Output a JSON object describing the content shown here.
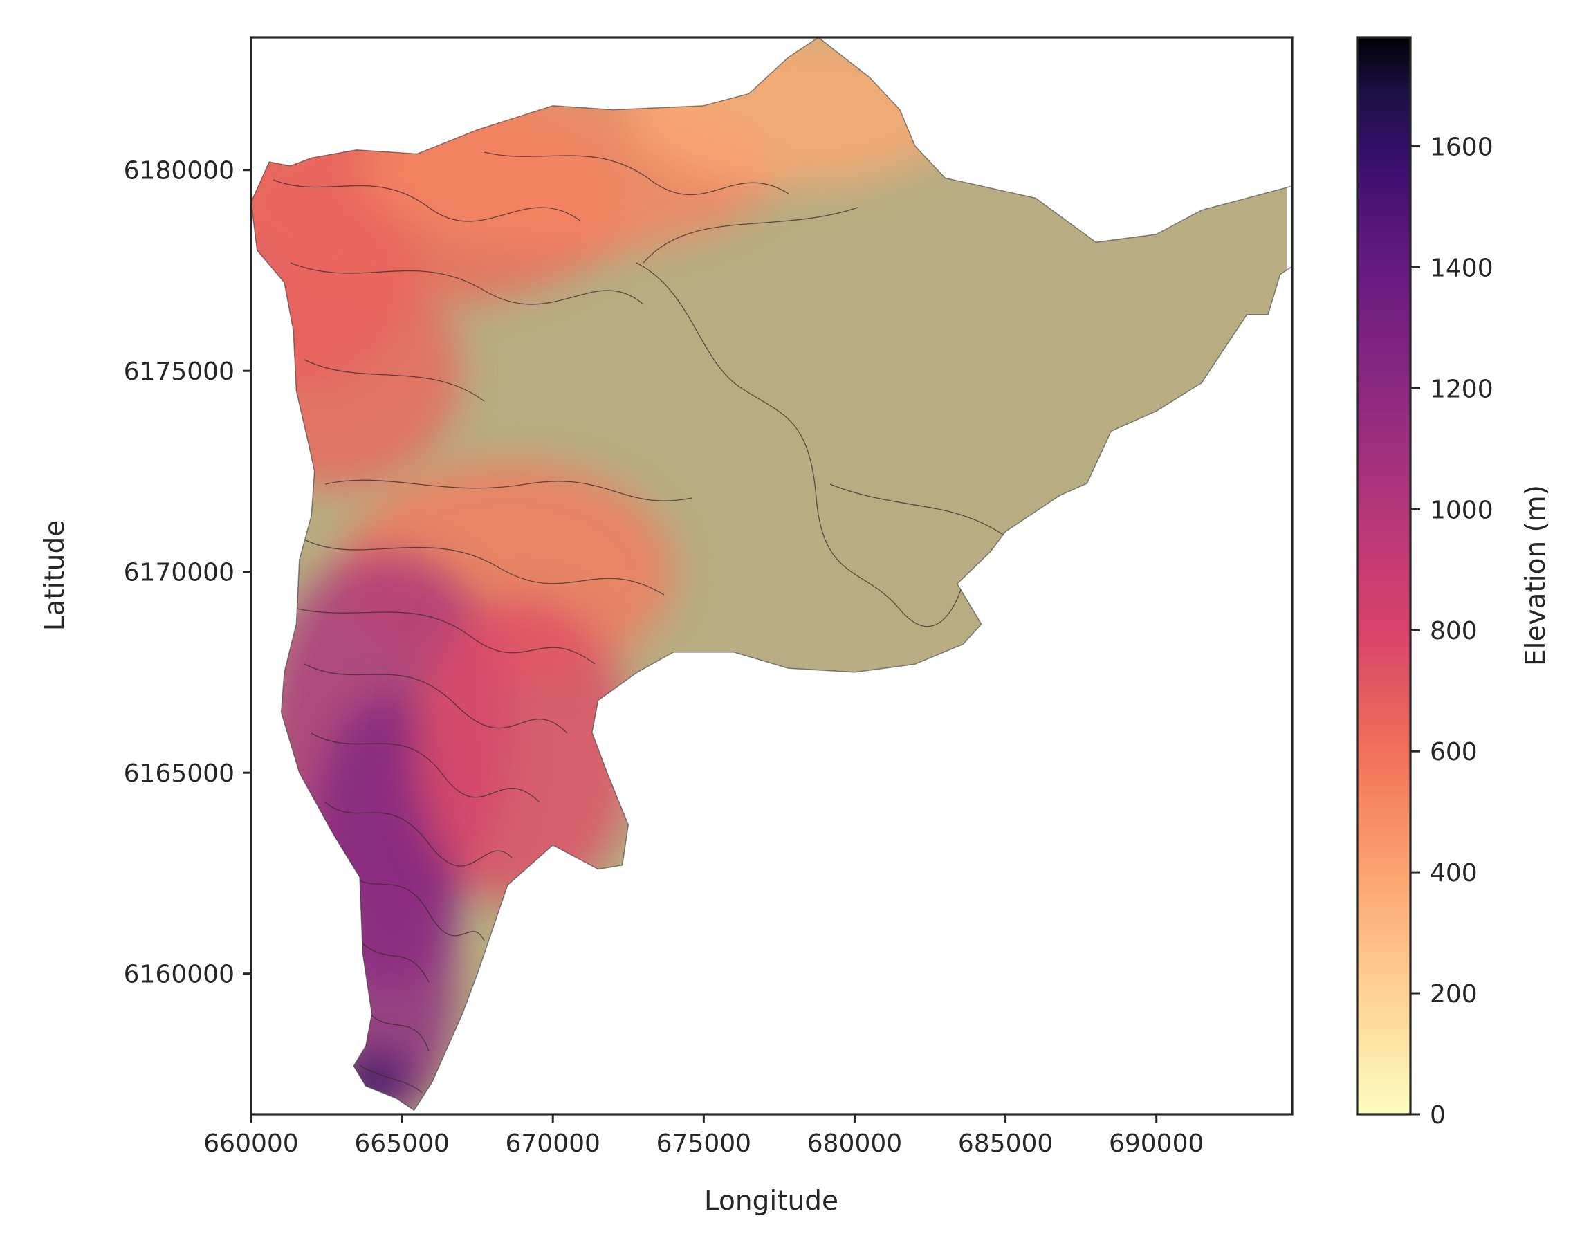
{
  "chart_data": {
    "type": "heatmap",
    "title": "",
    "xlabel": "Longitude",
    "ylabel": "Latitude",
    "xlim": [
      660000,
      694500
    ],
    "ylim": [
      6156500,
      6183300
    ],
    "x_ticks": [
      660000,
      665000,
      670000,
      675000,
      680000,
      685000,
      690000
    ],
    "y_ticks": [
      6160000,
      6165000,
      6170000,
      6175000,
      6180000
    ],
    "x_tick_labels": [
      "660000",
      "665000",
      "670000",
      "675000",
      "680000",
      "685000",
      "690000"
    ],
    "y_tick_labels": [
      "6160000",
      "6165000",
      "6170000",
      "6175000",
      "6180000"
    ],
    "grid": false,
    "colorbar": {
      "label": "Elevation (m)",
      "colormap": "magma_r",
      "range": [
        0,
        1780
      ],
      "ticks": [
        0,
        200,
        400,
        600,
        800,
        1000,
        1200,
        1400,
        1600
      ],
      "tick_labels": [
        "0",
        "200",
        "400",
        "600",
        "800",
        "1000",
        "1200",
        "1400",
        "1600"
      ]
    },
    "contour_interval_m": 100,
    "catchment_outline": [
      [
        660000,
        6179200
      ],
      [
        660600,
        6180200
      ],
      [
        661300,
        6180100
      ],
      [
        662000,
        6180300
      ],
      [
        663500,
        6180500
      ],
      [
        665500,
        6180400
      ],
      [
        667500,
        6181000
      ],
      [
        670000,
        6181600
      ],
      [
        672000,
        6181500
      ],
      [
        675000,
        6181600
      ],
      [
        676500,
        6181900
      ],
      [
        677800,
        6182800
      ],
      [
        678800,
        6183300
      ],
      [
        680500,
        6182300
      ],
      [
        681500,
        6181500
      ],
      [
        682000,
        6180600
      ],
      [
        683000,
        6179800
      ],
      [
        686000,
        6179300
      ],
      [
        688000,
        6178200
      ],
      [
        690000,
        6178400
      ],
      [
        691500,
        6179000
      ],
      [
        692500,
        6179200
      ],
      [
        694500,
        6179600
      ],
      [
        694500,
        6177600
      ],
      [
        694100,
        6177400
      ],
      [
        693700,
        6176400
      ],
      [
        693000,
        6176400
      ],
      [
        692200,
        6175500
      ],
      [
        691500,
        6174700
      ],
      [
        690000,
        6174000
      ],
      [
        688500,
        6173500
      ],
      [
        687700,
        6172200
      ],
      [
        686800,
        6171900
      ],
      [
        685000,
        6171000
      ],
      [
        684500,
        6170500
      ],
      [
        683400,
        6169700
      ],
      [
        684200,
        6168700
      ],
      [
        683600,
        6168200
      ],
      [
        682000,
        6167700
      ],
      [
        680000,
        6167500
      ],
      [
        677800,
        6167600
      ],
      [
        676000,
        6168000
      ],
      [
        674000,
        6168000
      ],
      [
        672800,
        6167500
      ],
      [
        671500,
        6166800
      ],
      [
        671300,
        6166000
      ],
      [
        671800,
        6165000
      ],
      [
        672500,
        6163700
      ],
      [
        672300,
        6162700
      ],
      [
        671500,
        6162600
      ],
      [
        670000,
        6163200
      ],
      [
        668500,
        6162200
      ],
      [
        667500,
        6160000
      ],
      [
        667000,
        6159000
      ],
      [
        666000,
        6157300
      ],
      [
        665400,
        6156600
      ],
      [
        664800,
        6156900
      ],
      [
        663800,
        6157200
      ],
      [
        663400,
        6157700
      ],
      [
        663800,
        6158200
      ],
      [
        664000,
        6159000
      ],
      [
        663700,
        6160500
      ],
      [
        663600,
        6162400
      ],
      [
        662700,
        6163500
      ],
      [
        661600,
        6165000
      ],
      [
        661000,
        6166500
      ],
      [
        661100,
        6167500
      ],
      [
        661500,
        6168700
      ],
      [
        661600,
        6170300
      ],
      [
        662000,
        6171400
      ],
      [
        662100,
        6172500
      ],
      [
        661900,
        6173200
      ],
      [
        661500,
        6174500
      ],
      [
        661400,
        6176000
      ],
      [
        661100,
        6177200
      ],
      [
        660200,
        6178000
      ],
      [
        660000,
        6179200
      ]
    ],
    "elevation_samples": [
      {
        "x": 665000,
        "y": 6164000,
        "elevation": 1250
      },
      {
        "x": 664000,
        "y": 6157300,
        "elevation": 1600
      },
      {
        "x": 668000,
        "y": 6166000,
        "elevation": 950
      },
      {
        "x": 662000,
        "y": 6178500,
        "elevation": 780
      },
      {
        "x": 674000,
        "y": 6176500,
        "elevation": 200
      },
      {
        "x": 688000,
        "y": 6174500,
        "elevation": 100
      },
      {
        "x": 679000,
        "y": 6182000,
        "elevation": 350
      }
    ]
  }
}
